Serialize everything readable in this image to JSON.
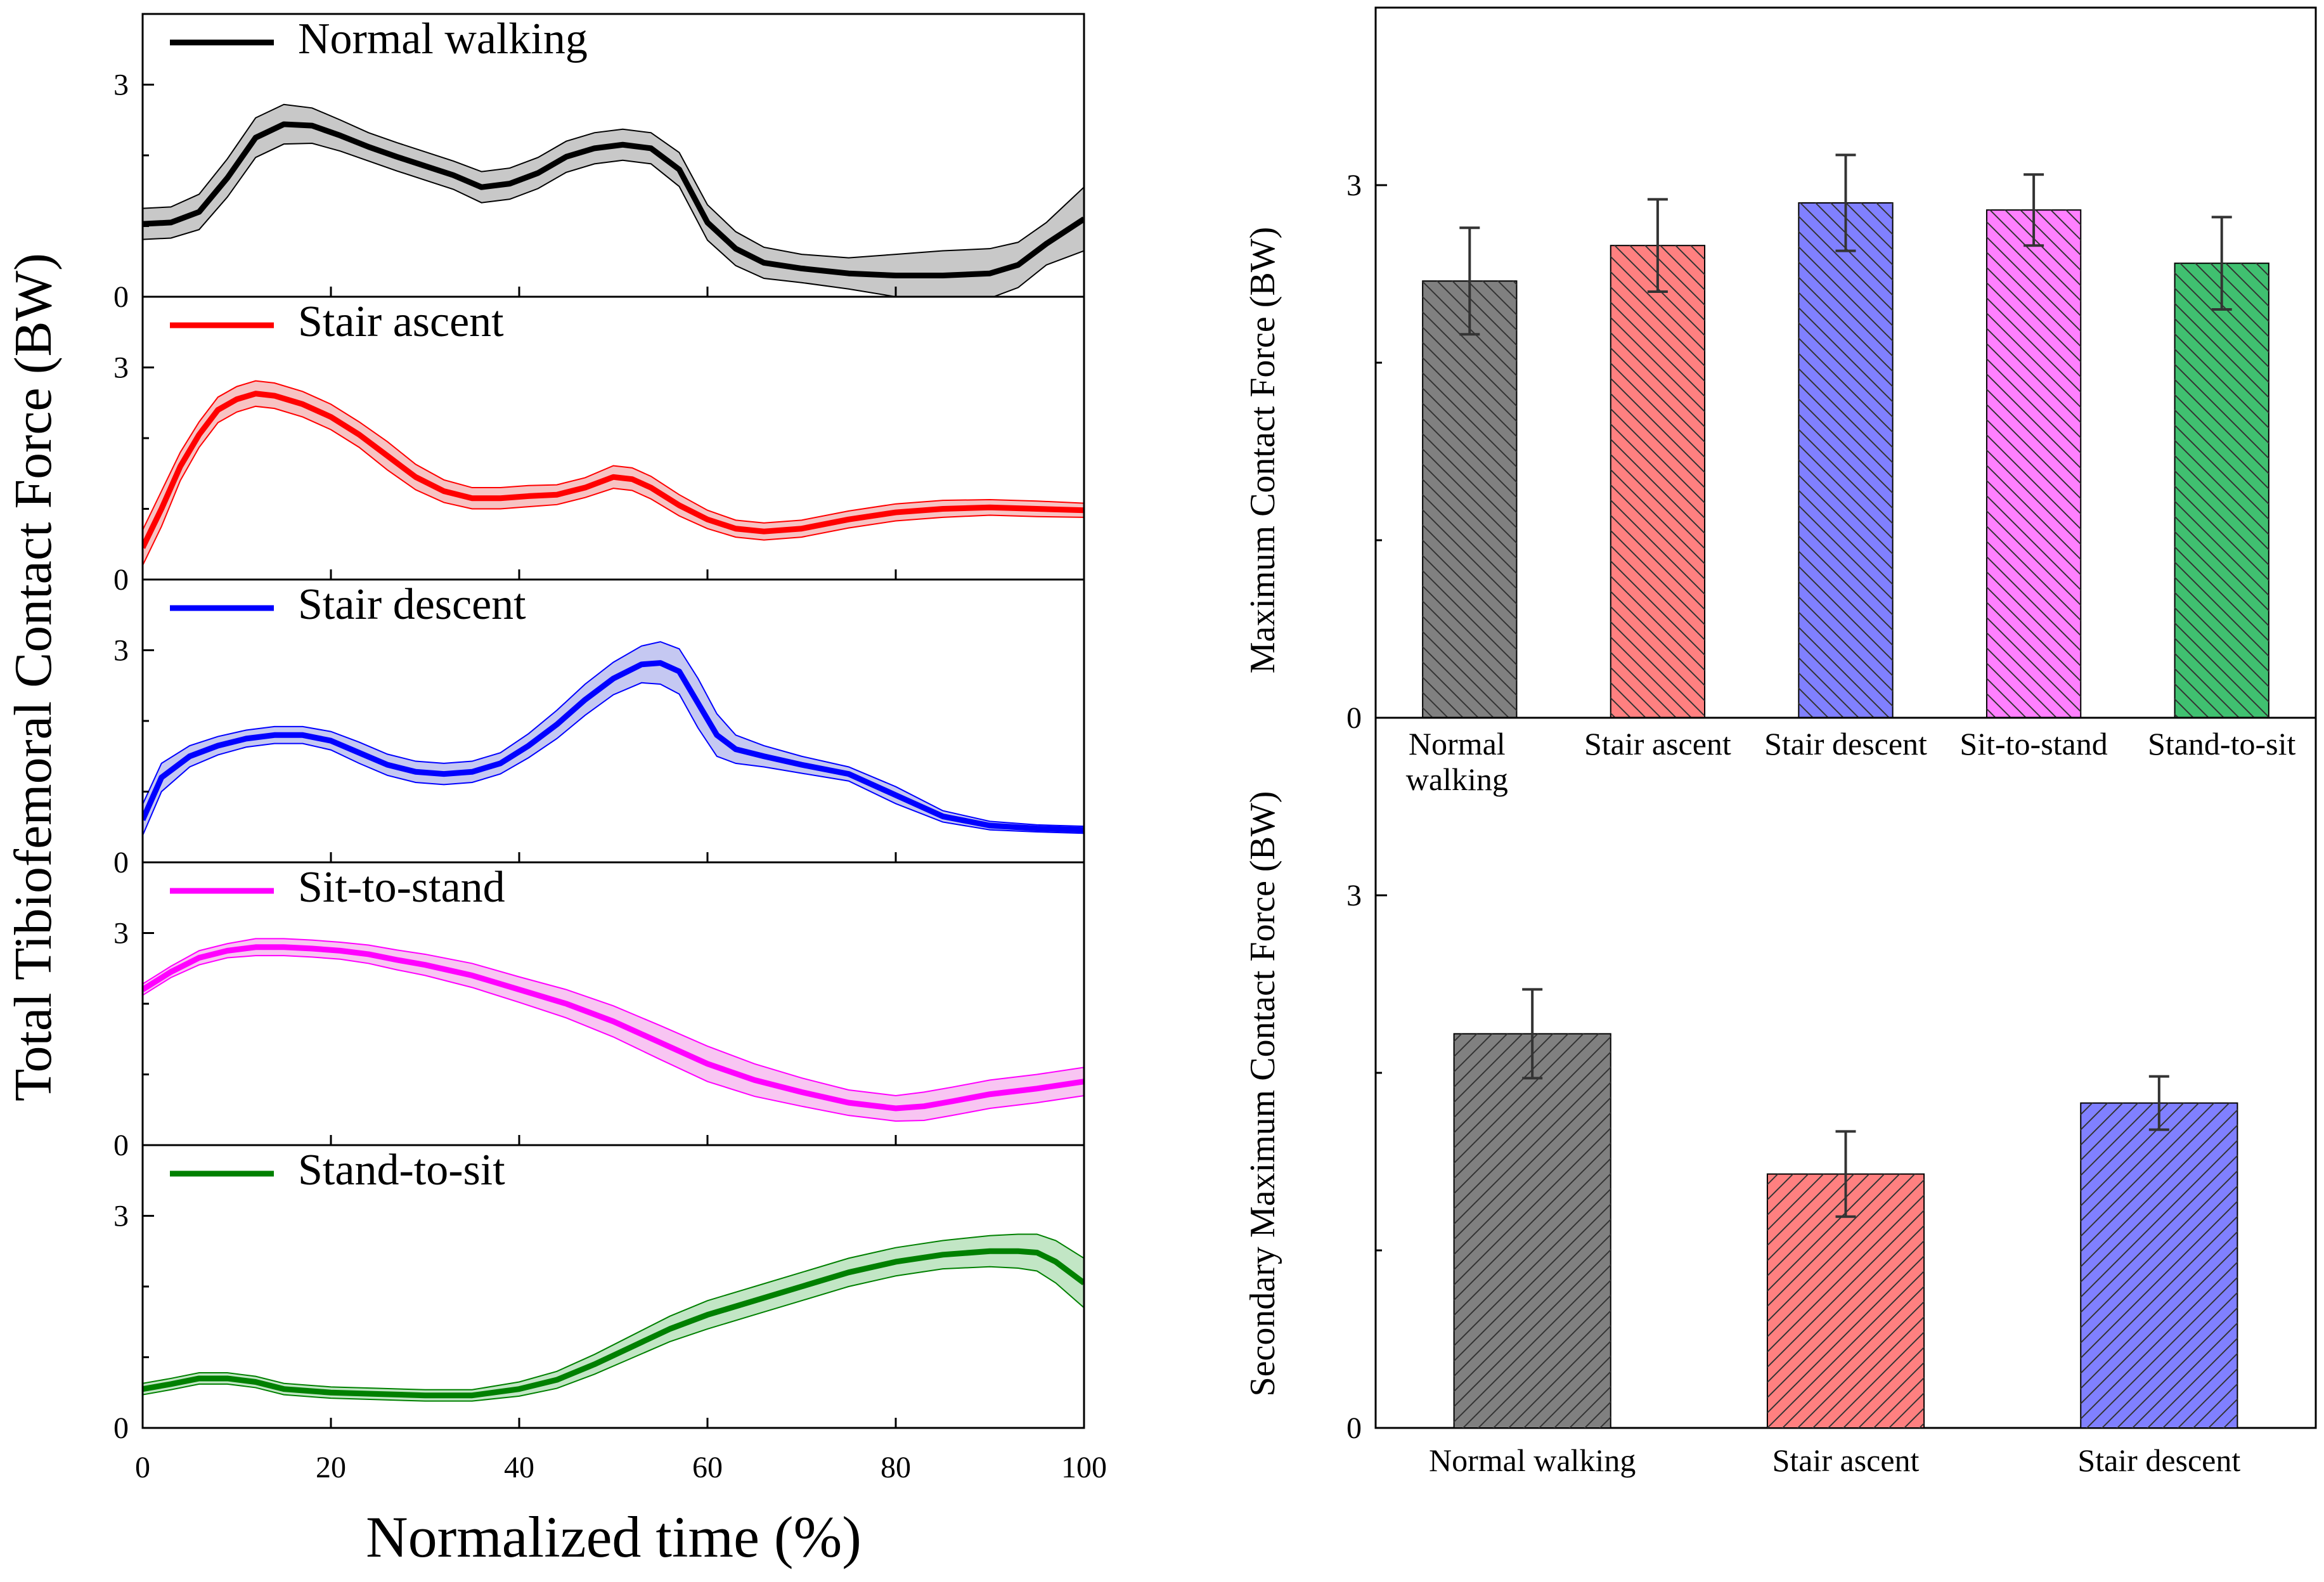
{
  "chart_data": [
    {
      "type": "line",
      "ylabel": "Total Tibiofemoral Contact Force (BW)",
      "xlabel": "Normalized time (%)",
      "xlim": [
        0,
        100
      ],
      "ylim": [
        0,
        4
      ],
      "xticks": [
        "0",
        "20",
        "40",
        "60",
        "80",
        "100"
      ],
      "yticks": [
        "0",
        "3"
      ],
      "series": [
        {
          "name": "Normal walking",
          "color": "#000000",
          "band_color": "#c8c8c8",
          "x": [
            0,
            3,
            6,
            9,
            12,
            15,
            18,
            21,
            24,
            27,
            30,
            33,
            36,
            39,
            42,
            45,
            48,
            51,
            54,
            57,
            60,
            63,
            66,
            70,
            75,
            80,
            85,
            90,
            93,
            96,
            100
          ],
          "mean": [
            1.03,
            1.05,
            1.2,
            1.68,
            2.25,
            2.44,
            2.42,
            2.28,
            2.12,
            1.98,
            1.85,
            1.72,
            1.55,
            1.6,
            1.75,
            1.98,
            2.1,
            2.15,
            2.1,
            1.8,
            1.05,
            0.68,
            0.48,
            0.4,
            0.33,
            0.3,
            0.3,
            0.33,
            0.45,
            0.75,
            1.1
          ],
          "sd": [
            0.22,
            0.22,
            0.25,
            0.27,
            0.28,
            0.28,
            0.25,
            0.22,
            0.2,
            0.2,
            0.2,
            0.2,
            0.22,
            0.22,
            0.22,
            0.22,
            0.22,
            0.22,
            0.22,
            0.24,
            0.25,
            0.24,
            0.22,
            0.2,
            0.22,
            0.3,
            0.35,
            0.35,
            0.32,
            0.3,
            0.45
          ]
        },
        {
          "name": "Stair ascent",
          "color": "#ff0000",
          "band_color": "#f7c3c3",
          "x": [
            0,
            2,
            4,
            6,
            8,
            10,
            12,
            14,
            17,
            20,
            23,
            26,
            29,
            32,
            35,
            38,
            41,
            44,
            47,
            50,
            52,
            54,
            57,
            60,
            63,
            66,
            70,
            75,
            80,
            85,
            90,
            95,
            100
          ],
          "mean": [
            0.45,
            1.0,
            1.6,
            2.05,
            2.4,
            2.55,
            2.63,
            2.6,
            2.48,
            2.3,
            2.05,
            1.75,
            1.45,
            1.25,
            1.15,
            1.15,
            1.18,
            1.2,
            1.3,
            1.45,
            1.42,
            1.3,
            1.05,
            0.85,
            0.72,
            0.68,
            0.72,
            0.85,
            0.95,
            1.0,
            1.02,
            1.0,
            0.98
          ],
          "sd": [
            0.25,
            0.25,
            0.2,
            0.18,
            0.18,
            0.18,
            0.18,
            0.18,
            0.18,
            0.18,
            0.18,
            0.2,
            0.18,
            0.16,
            0.15,
            0.15,
            0.15,
            0.14,
            0.14,
            0.16,
            0.16,
            0.16,
            0.15,
            0.13,
            0.12,
            0.12,
            0.12,
            0.12,
            0.12,
            0.12,
            0.11,
            0.11,
            0.1
          ]
        },
        {
          "name": "Stair descent",
          "color": "#0000ff",
          "band_color": "#c5c8f2",
          "x": [
            0,
            2,
            5,
            8,
            11,
            14,
            17,
            20,
            23,
            26,
            29,
            32,
            35,
            38,
            41,
            44,
            47,
            50,
            53,
            55,
            57,
            59,
            61,
            63,
            66,
            70,
            75,
            80,
            85,
            90,
            95,
            100
          ],
          "mean": [
            0.6,
            1.2,
            1.5,
            1.65,
            1.75,
            1.8,
            1.8,
            1.72,
            1.55,
            1.38,
            1.28,
            1.25,
            1.28,
            1.4,
            1.65,
            1.95,
            2.3,
            2.6,
            2.8,
            2.82,
            2.7,
            2.25,
            1.8,
            1.6,
            1.5,
            1.38,
            1.25,
            0.95,
            0.65,
            0.52,
            0.48,
            0.46
          ],
          "sd": [
            0.22,
            0.2,
            0.15,
            0.13,
            0.12,
            0.12,
            0.12,
            0.13,
            0.15,
            0.15,
            0.15,
            0.15,
            0.15,
            0.15,
            0.17,
            0.2,
            0.22,
            0.23,
            0.26,
            0.3,
            0.32,
            0.35,
            0.3,
            0.2,
            0.15,
            0.12,
            0.1,
            0.12,
            0.08,
            0.06,
            0.05,
            0.05
          ]
        },
        {
          "name": "Sit-to-stand",
          "color": "#ff00ff",
          "band_color": "#f8c5f2",
          "x": [
            0,
            3,
            6,
            9,
            12,
            15,
            18,
            21,
            24,
            27,
            30,
            35,
            40,
            45,
            50,
            55,
            60,
            65,
            70,
            75,
            80,
            83,
            86,
            90,
            95,
            100
          ],
          "mean": [
            2.2,
            2.45,
            2.65,
            2.75,
            2.8,
            2.8,
            2.78,
            2.75,
            2.7,
            2.62,
            2.55,
            2.4,
            2.2,
            2.0,
            1.75,
            1.45,
            1.15,
            0.92,
            0.75,
            0.6,
            0.52,
            0.55,
            0.62,
            0.72,
            0.8,
            0.9
          ],
          "sd": [
            0.08,
            0.08,
            0.1,
            0.1,
            0.12,
            0.12,
            0.12,
            0.12,
            0.13,
            0.14,
            0.15,
            0.17,
            0.18,
            0.2,
            0.22,
            0.24,
            0.25,
            0.23,
            0.2,
            0.18,
            0.18,
            0.2,
            0.2,
            0.2,
            0.2,
            0.2
          ]
        },
        {
          "name": "Stand-to-sit",
          "color": "#008000",
          "band_color": "#c2e6c5",
          "x": [
            0,
            3,
            6,
            9,
            12,
            15,
            20,
            25,
            30,
            35,
            40,
            44,
            48,
            52,
            56,
            60,
            65,
            70,
            75,
            80,
            85,
            90,
            93,
            95,
            97,
            100
          ],
          "mean": [
            0.55,
            0.62,
            0.7,
            0.7,
            0.65,
            0.55,
            0.5,
            0.48,
            0.46,
            0.46,
            0.55,
            0.68,
            0.9,
            1.15,
            1.4,
            1.6,
            1.8,
            2.0,
            2.2,
            2.35,
            2.45,
            2.5,
            2.5,
            2.48,
            2.35,
            2.05
          ],
          "sd": [
            0.08,
            0.08,
            0.08,
            0.08,
            0.08,
            0.08,
            0.08,
            0.08,
            0.08,
            0.08,
            0.1,
            0.12,
            0.14,
            0.16,
            0.18,
            0.2,
            0.2,
            0.2,
            0.2,
            0.2,
            0.2,
            0.22,
            0.24,
            0.26,
            0.3,
            0.35
          ]
        }
      ]
    },
    {
      "type": "bar",
      "ylabel": "Maximum Contact Force (BW)",
      "ylim": [
        0,
        4
      ],
      "yticks": [
        "0",
        "3"
      ],
      "categories": [
        "Normal walking",
        "Stair ascent",
        "Stair descent",
        "Sit-to-stand",
        "Stand-to-sit"
      ],
      "category_lines": [
        [
          "Normal",
          "walking"
        ],
        [
          "Stair ascent"
        ],
        [
          "Stair descent"
        ],
        [
          "Sit-to-stand"
        ],
        [
          "Stand-to-sit"
        ]
      ],
      "values": [
        2.46,
        2.66,
        2.9,
        2.86,
        2.56
      ],
      "errors": [
        0.3,
        0.26,
        0.27,
        0.2,
        0.26
      ],
      "colors": [
        "#808080",
        "#ff8080",
        "#8080ff",
        "#ff80ff",
        "#40c070"
      ],
      "hatch": "backslash"
    },
    {
      "type": "bar",
      "ylabel": "Secondary Maximum Contact Force (BW)",
      "ylim": [
        0,
        4
      ],
      "yticks": [
        "0",
        "3"
      ],
      "categories": [
        "Normal walking",
        "Stair ascent",
        "Stair descent"
      ],
      "values": [
        2.22,
        1.43,
        1.83
      ],
      "errors": [
        0.25,
        0.24,
        0.15
      ],
      "colors": [
        "#808080",
        "#ff8080",
        "#8080ff"
      ],
      "hatch": "slash"
    }
  ]
}
